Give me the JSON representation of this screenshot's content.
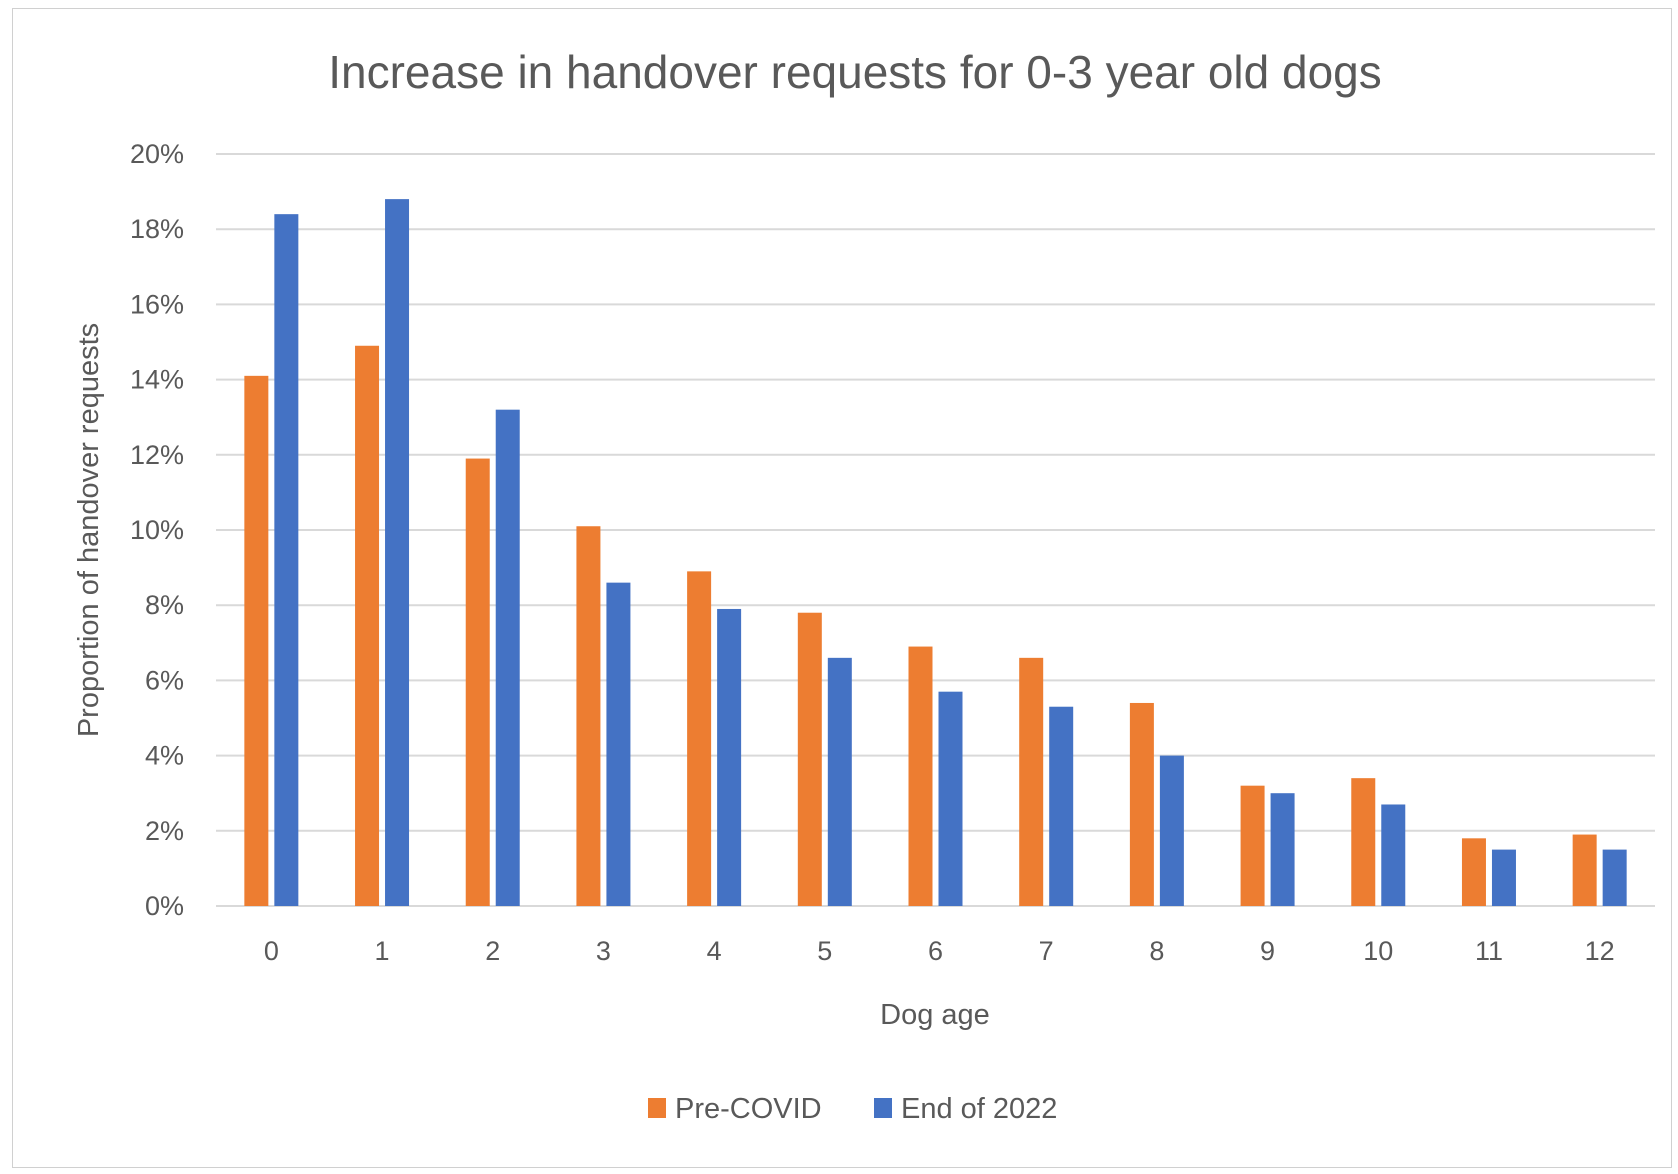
{
  "chart_data": {
    "type": "bar",
    "title": "Increase in handover requests for 0-3 year old dogs",
    "xlabel": "Dog age",
    "ylabel": "Proportion of handover requests",
    "categories": [
      "0",
      "1",
      "2",
      "3",
      "4",
      "5",
      "6",
      "7",
      "8",
      "9",
      "10",
      "11",
      "12"
    ],
    "series": [
      {
        "name": "Pre-COVID",
        "color": "#ed7d31",
        "values": [
          14.1,
          14.9,
          11.9,
          10.1,
          8.9,
          7.8,
          6.9,
          6.6,
          5.4,
          3.2,
          3.4,
          1.8,
          1.9
        ]
      },
      {
        "name": "End of 2022",
        "color": "#4472c4",
        "values": [
          18.4,
          18.8,
          13.2,
          8.6,
          7.9,
          6.6,
          5.7,
          5.3,
          4.0,
          3.0,
          2.7,
          1.5,
          1.5
        ]
      }
    ],
    "ylim": [
      0,
      20
    ],
    "yticks": [
      "0%",
      "2%",
      "4%",
      "6%",
      "8%",
      "10%",
      "12%",
      "14%",
      "16%",
      "18%",
      "20%"
    ],
    "grid": true,
    "gridline_color": "#d9d9d9",
    "legend_position": "bottom"
  }
}
